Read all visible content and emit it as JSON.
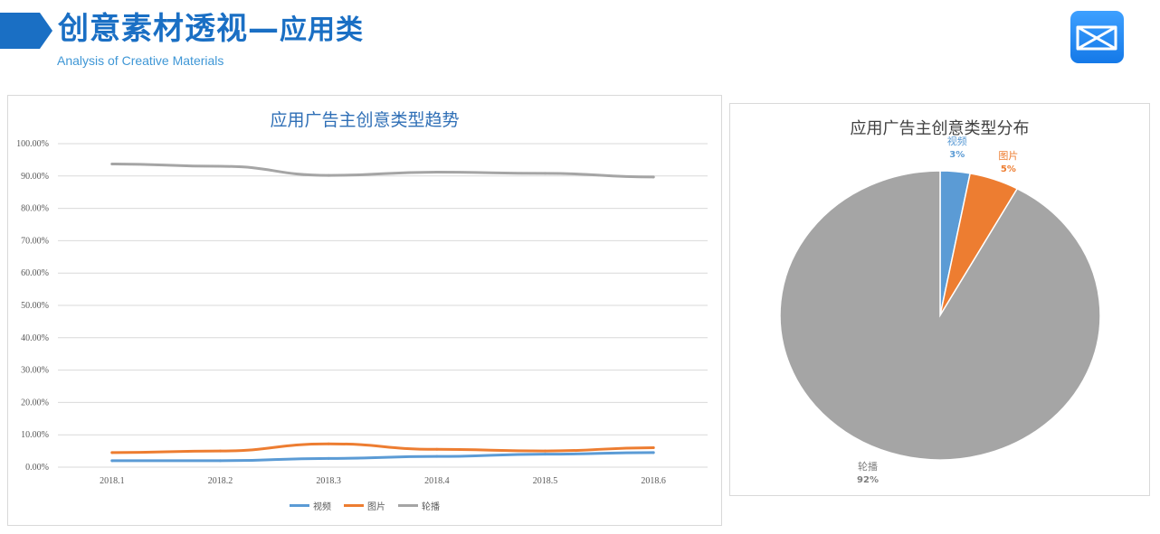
{
  "header": {
    "title_main": "创意素材透视",
    "title_dash": "—",
    "title_sub": "应用类",
    "subtitle": "Analysis of Creative Materials",
    "accent": "#1a6fc4"
  },
  "colors": {
    "video": "#5b9bd5",
    "image": "#ed7d31",
    "carousel": "#a5a5a5"
  },
  "chart_data": [
    {
      "type": "line",
      "title": "应用广告主创意类型趋势",
      "categories": [
        "2018.1",
        "2018.2",
        "2018.3",
        "2018.4",
        "2018.5",
        "2018.6"
      ],
      "y_ticks": [
        "0.00%",
        "10.00%",
        "20.00%",
        "30.00%",
        "40.00%",
        "50.00%",
        "60.00%",
        "70.00%",
        "80.00%",
        "90.00%",
        "100.00%"
      ],
      "ylim": [
        0,
        100
      ],
      "grid": true,
      "legend_position": "bottom",
      "series": [
        {
          "name": "视频",
          "color": "#5b9bd5",
          "values": [
            2.0,
            2.0,
            2.7,
            3.3,
            4.0,
            4.5
          ]
        },
        {
          "name": "图片",
          "color": "#ed7d31",
          "values": [
            4.5,
            5.0,
            7.2,
            5.5,
            5.0,
            6.0
          ]
        },
        {
          "name": "轮播",
          "color": "#a5a5a5",
          "values": [
            93.7,
            93.0,
            90.2,
            91.2,
            90.8,
            89.7
          ]
        }
      ]
    },
    {
      "type": "pie",
      "title": "应用广告主创意类型分布",
      "slices": [
        {
          "label": "视频",
          "value": 3,
          "display": "3%",
          "color": "#5b9bd5"
        },
        {
          "label": "图片",
          "value": 5,
          "display": "5%",
          "color": "#ed7d31"
        },
        {
          "label": "轮播",
          "value": 92,
          "display": "92%",
          "color": "#a5a5a5"
        }
      ]
    }
  ]
}
